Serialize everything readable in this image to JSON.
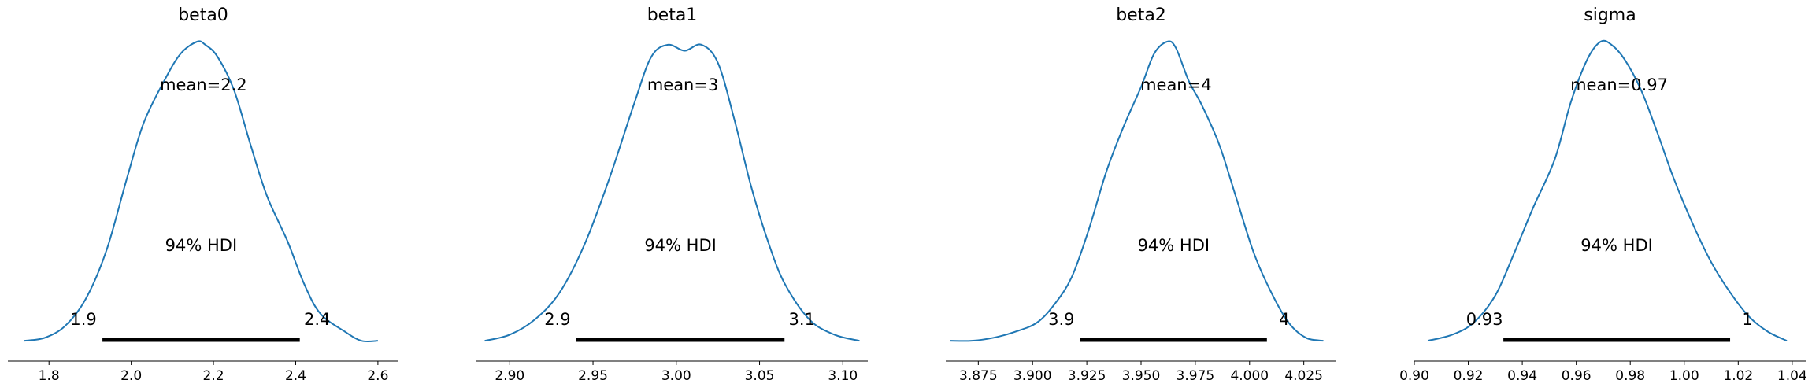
{
  "chart_data": [
    {
      "type": "line",
      "title": "beta0",
      "color": "#1f77b4",
      "mean_label": "mean=2.2",
      "hdi_label": "94% HDI",
      "hdi_low_label": "1.9",
      "hdi_high_label": "2.4",
      "hdi": [
        1.93,
        2.41
      ],
      "xlim": [
        1.7,
        2.65
      ],
      "xticks": [
        1.8,
        2.0,
        2.2,
        2.4,
        2.6
      ],
      "xtick_labels": [
        "1.8",
        "2.0",
        "2.2",
        "2.4",
        "2.6"
      ],
      "x": [
        1.74,
        1.79,
        1.84,
        1.89,
        1.94,
        1.99,
        2.03,
        2.08,
        2.12,
        2.16,
        2.18,
        2.21,
        2.25,
        2.29,
        2.33,
        2.38,
        2.42,
        2.46,
        2.52,
        2.56,
        2.6
      ],
      "y": [
        0.01,
        0.02,
        0.06,
        0.15,
        0.31,
        0.55,
        0.73,
        0.87,
        0.96,
        1.0,
        0.99,
        0.95,
        0.84,
        0.66,
        0.49,
        0.34,
        0.2,
        0.1,
        0.04,
        0.01,
        0.01
      ]
    },
    {
      "type": "line",
      "title": "beta1",
      "color": "#1f77b4",
      "mean_label": "mean=3",
      "hdi_label": "94% HDI",
      "hdi_low_label": "2.9",
      "hdi_high_label": "3.1",
      "hdi": [
        2.94,
        3.065
      ],
      "xlim": [
        2.88,
        3.115
      ],
      "xticks": [
        2.9,
        2.95,
        3.0,
        3.05,
        3.1
      ],
      "xtick_labels": [
        "2.90",
        "2.95",
        "3.00",
        "3.05",
        "3.10"
      ],
      "x": [
        2.885,
        2.9,
        2.915,
        2.93,
        2.945,
        2.96,
        2.975,
        2.985,
        2.995,
        3.005,
        3.015,
        3.025,
        3.035,
        3.045,
        3.055,
        3.065,
        3.08,
        3.095,
        3.11
      ],
      "y": [
        0.01,
        0.03,
        0.08,
        0.17,
        0.33,
        0.55,
        0.8,
        0.95,
        0.99,
        0.97,
        0.99,
        0.93,
        0.74,
        0.52,
        0.34,
        0.2,
        0.08,
        0.03,
        0.01
      ]
    },
    {
      "type": "line",
      "title": "beta2",
      "color": "#1f77b4",
      "mean_label": "mean=4",
      "hdi_label": "94% HDI",
      "hdi_low_label": "3.9",
      "hdi_high_label": "4",
      "hdi": [
        3.922,
        4.008
      ],
      "xlim": [
        3.86,
        4.04
      ],
      "xticks": [
        3.875,
        3.9,
        3.925,
        3.95,
        3.975,
        4.0,
        4.025
      ],
      "xtick_labels": [
        "3.875",
        "3.900",
        "3.925",
        "3.950",
        "3.975",
        "4.000",
        "4.025"
      ],
      "x": [
        3.862,
        3.872,
        3.882,
        3.892,
        3.902,
        3.91,
        3.918,
        3.926,
        3.934,
        3.942,
        3.95,
        3.956,
        3.962,
        3.966,
        3.972,
        3.978,
        3.986,
        3.994,
        4.002,
        4.01,
        4.018,
        4.026,
        4.034
      ],
      "y": [
        0.01,
        0.01,
        0.02,
        0.04,
        0.07,
        0.13,
        0.22,
        0.38,
        0.57,
        0.72,
        0.85,
        0.96,
        1.0,
        0.98,
        0.87,
        0.79,
        0.66,
        0.48,
        0.3,
        0.17,
        0.07,
        0.02,
        0.01
      ]
    },
    {
      "type": "line",
      "title": "sigma",
      "color": "#1f77b4",
      "mean_label": "mean=0.97",
      "hdi_label": "94% HDI",
      "hdi_low_label": "0.93",
      "hdi_high_label": "1",
      "hdi": [
        0.933,
        1.017
      ],
      "xlim": [
        0.9,
        1.045
      ],
      "xticks": [
        0.9,
        0.92,
        0.94,
        0.96,
        0.98,
        1.0,
        1.02,
        1.04
      ],
      "xtick_labels": [
        "0.90",
        "0.92",
        "0.94",
        "0.96",
        "0.98",
        "1.00",
        "1.02",
        "1.04"
      ],
      "x": [
        0.905,
        0.914,
        0.922,
        0.93,
        0.937,
        0.944,
        0.952,
        0.958,
        0.964,
        0.969,
        0.973,
        0.978,
        0.984,
        0.99,
        0.996,
        1.003,
        1.01,
        1.017,
        1.024,
        1.031,
        1.038
      ],
      "y": [
        0.01,
        0.03,
        0.07,
        0.16,
        0.3,
        0.45,
        0.61,
        0.8,
        0.94,
        1.0,
        0.99,
        0.94,
        0.84,
        0.7,
        0.55,
        0.4,
        0.27,
        0.17,
        0.09,
        0.04,
        0.01
      ]
    }
  ]
}
